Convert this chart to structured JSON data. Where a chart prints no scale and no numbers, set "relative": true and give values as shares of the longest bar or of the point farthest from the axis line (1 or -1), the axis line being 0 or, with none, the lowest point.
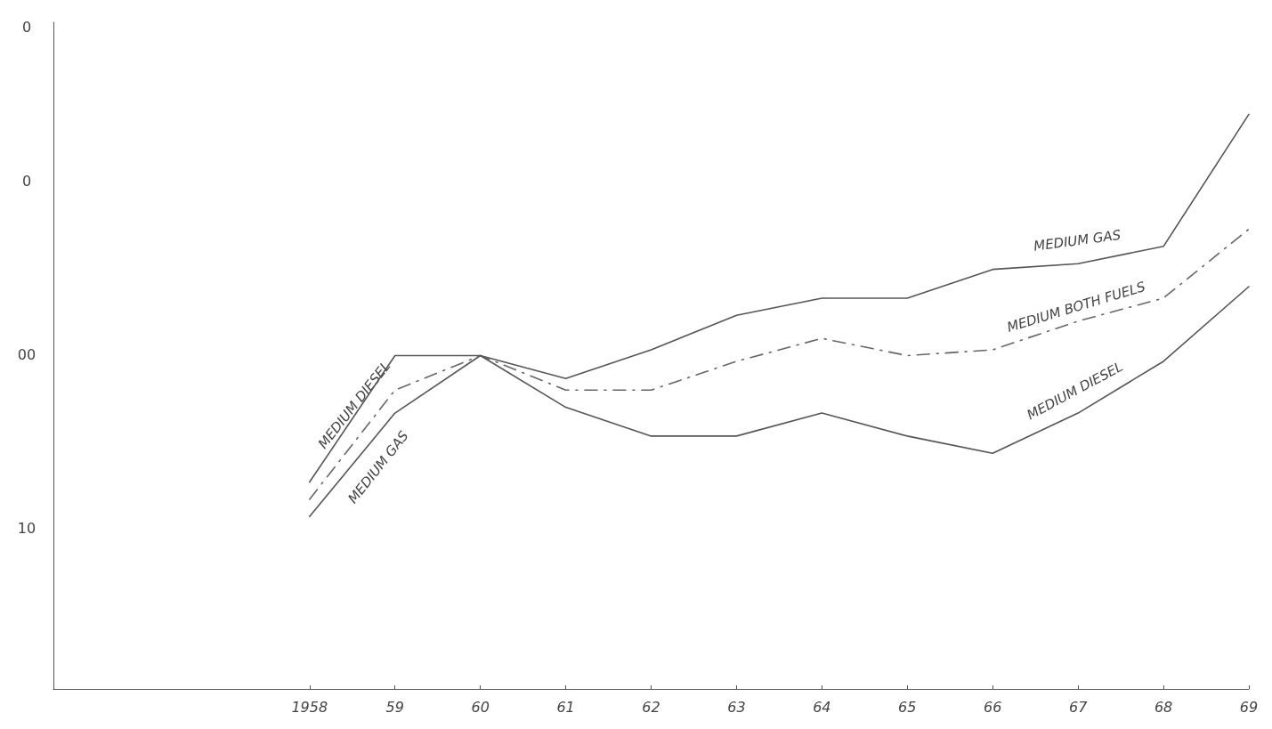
{
  "chart_data": {
    "type": "line",
    "relative": true,
    "x": [
      1958,
      1959,
      1960,
      1961,
      1962,
      1963,
      1964,
      1965,
      1966,
      1967,
      1968,
      1969
    ],
    "xlim": [
      1955,
      1969
    ],
    "xticks": [
      1958,
      {
        "value": 1959,
        "label": "59"
      },
      {
        "value": 1960,
        "label": "60"
      },
      {
        "value": 1961,
        "label": "61"
      },
      {
        "value": 1962,
        "label": "62"
      },
      {
        "value": 1963,
        "label": "63"
      },
      {
        "value": 1964,
        "label": "64"
      },
      {
        "value": 1965,
        "label": "65"
      },
      {
        "value": 1966,
        "label": "66"
      },
      {
        "value": 1967,
        "label": "67"
      },
      {
        "value": 1968,
        "label": "68"
      },
      {
        "value": 1969,
        "label": "69"
      }
    ],
    "series": [
      {
        "name": "MEDIUM GAS",
        "color": "#555555",
        "line_style": "solid",
        "values": [
          0.3,
          0.48,
          0.58,
          0.54,
          0.59,
          0.65,
          0.68,
          0.68,
          0.73,
          0.74,
          0.77,
          1
        ]
      },
      {
        "name": "MEDIUM BOTH FUELS",
        "color": "#666666",
        "line_style": "dashed",
        "values": [
          0.33,
          0.52,
          0.58,
          0.52,
          0.52,
          0.57,
          0.61,
          0.58,
          0.59,
          0.64,
          0.68,
          0.8
        ]
      },
      {
        "name": "MEDIUM DIESEL",
        "color": "#555555",
        "line_style": "solid",
        "values": [
          0.36,
          0.58,
          0.58,
          0.49,
          0.44,
          0.44,
          0.48,
          0.44,
          0.41,
          0.48,
          0.57,
          0.7
        ]
      }
    ],
    "annotations": [
      "MEDIUM DIESEL",
      "MEDIUM GAS",
      "0",
      "0",
      "00",
      "10"
    ],
    "grid": false,
    "legend": false
  }
}
